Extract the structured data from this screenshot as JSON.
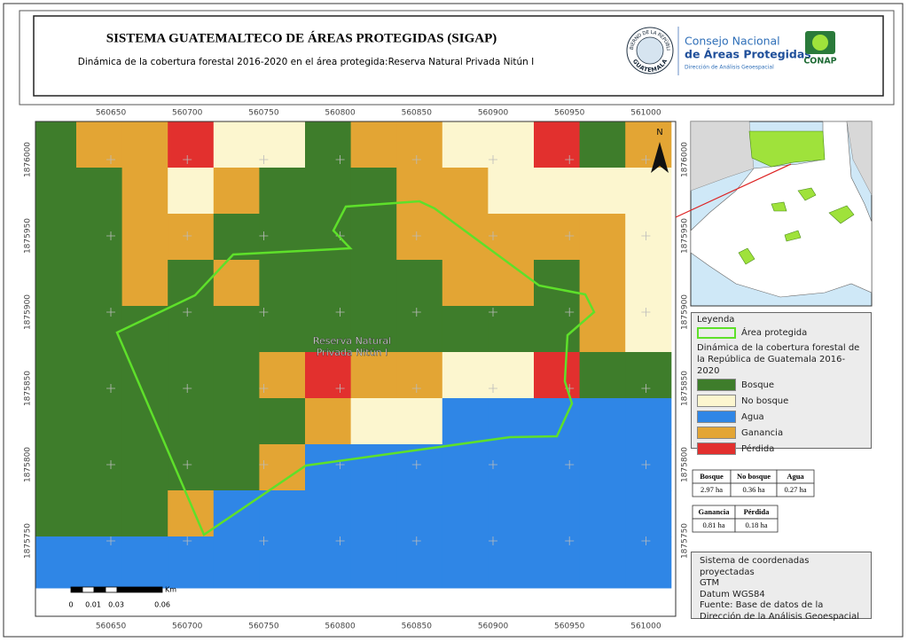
{
  "header": {
    "title": "SISTEMA GUATEMALTECO DE ÁREAS PROTEGIDAS (SIGAP)",
    "subtitle": "Dinámica de la cobertura forestal 2016-2020 en el área protegida:Reserva Natural Privada Nitún I",
    "logos": {
      "seal_top": "GOBIERNO DE LA REPÚBLICA",
      "seal_bottom": "GUATEMALA",
      "conap_line1": "Consejo Nacional",
      "conap_line2": "de Áreas Protegidas",
      "conap_line3": "Dirección de Análisis Geoespacial",
      "conap_short": "CONAP"
    }
  },
  "map": {
    "x_ticks": [
      560650,
      560700,
      560750,
      560800,
      560850,
      560900,
      560950,
      561000
    ],
    "y_ticks": [
      1876000,
      1875950,
      1875900,
      1875850,
      1875800,
      1875750
    ],
    "area_label": [
      "Reserva Natural",
      "Privada Nitún I"
    ],
    "north": "N",
    "scale": {
      "unit": "Km",
      "labels": [
        "0",
        "0.01",
        "0.03",
        "0.06"
      ]
    }
  },
  "legend": {
    "title": "Leyenda",
    "boundary": "Área protegida",
    "subtitle": "Dinámica de la cobertura forestal de la República de Guatemala 2016-2020",
    "items": [
      {
        "label": "Bosque",
        "color": "#3e7d2b"
      },
      {
        "label": "No bosque",
        "color": "#fcf6cf"
      },
      {
        "label": "Agua",
        "color": "#2f86e6"
      },
      {
        "label": "Ganancia",
        "color": "#e3a534"
      },
      {
        "label": "Pérdida",
        "color": "#e2302e"
      }
    ]
  },
  "tables": [
    {
      "header": [
        "Bosque",
        "No bosque",
        "Agua"
      ],
      "rows": [
        [
          "2.97 ha",
          "0.36 ha",
          "0.27 ha"
        ]
      ]
    },
    {
      "header": [
        "Ganancia",
        "Pérdida"
      ],
      "rows": [
        [
          "0.81 ha",
          "0.18 ha"
        ]
      ]
    }
  ],
  "info": [
    "Sistema de coordenadas proyectadas",
    "GTM",
    "Datum WGS84",
    "Fuente: Base de datos de la",
    "Dirección de la Análisis Geoespacial"
  ]
}
